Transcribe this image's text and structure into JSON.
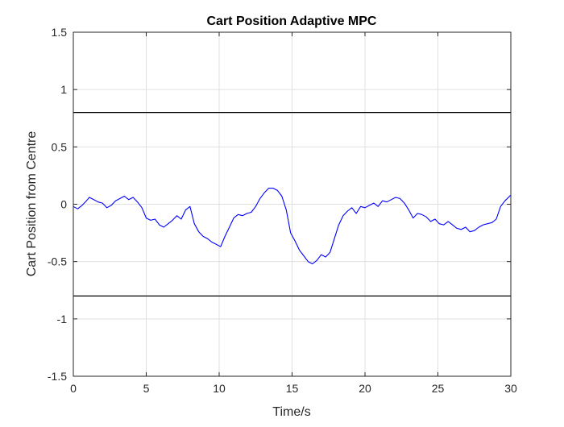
{
  "chart_data": {
    "type": "line",
    "title": "Cart Position Adaptive MPC",
    "xlabel": "Time/s",
    "ylabel": "Cart Position from Centre",
    "xlim": [
      0,
      30
    ],
    "ylim": [
      -1.5,
      1.5
    ],
    "xticks": [
      0,
      5,
      10,
      15,
      20,
      25,
      30
    ],
    "yticks": [
      -1.5,
      -1,
      -0.5,
      0,
      0.5,
      1,
      1.5
    ],
    "xtick_labels": [
      "0",
      "5",
      "10",
      "15",
      "20",
      "25",
      "30"
    ],
    "ytick_labels": [
      "-1.5",
      "-1",
      "-0.5",
      "0",
      "0.5",
      "1",
      "1.5"
    ],
    "grid": true,
    "constraint_lines": [
      0.8,
      -0.8
    ],
    "constraint_color": "#000000",
    "series_color": "#0000ff",
    "series": [
      {
        "x": [
          0,
          0.3,
          0.6,
          0.9,
          1.1,
          1.4,
          1.7,
          2.0,
          2.3,
          2.6,
          2.9,
          3.2,
          3.5,
          3.8,
          4.1,
          4.4,
          4.7,
          5.0,
          5.3,
          5.6,
          5.9,
          6.2,
          6.5,
          6.8,
          7.1,
          7.4,
          7.7,
          8.0,
          8.3,
          8.6,
          8.9,
          9.2,
          9.5,
          9.8,
          10.1,
          10.4,
          10.7,
          11.0,
          11.3,
          11.6,
          11.9,
          12.2,
          12.5,
          12.8,
          13.1,
          13.4,
          13.7,
          14.0,
          14.3,
          14.6,
          14.9,
          15.2,
          15.5,
          15.8,
          16.1,
          16.4,
          16.7,
          17.0,
          17.3,
          17.6,
          17.9,
          18.2,
          18.5,
          18.8,
          19.1,
          19.4,
          19.7,
          20.0,
          20.3,
          20.6,
          20.9,
          21.2,
          21.5,
          21.8,
          22.1,
          22.4,
          22.7,
          23.0,
          23.3,
          23.6,
          23.9,
          24.2,
          24.5,
          24.8,
          25.1,
          25.4,
          25.7,
          26.0,
          26.3,
          26.6,
          26.9,
          27.2,
          27.5,
          27.8,
          28.1,
          28.4,
          28.7,
          29.0,
          29.3,
          29.6,
          30.0
        ],
        "values": [
          -0.02,
          -0.04,
          -0.01,
          0.03,
          0.06,
          0.04,
          0.02,
          0.01,
          -0.03,
          -0.01,
          0.03,
          0.05,
          0.07,
          0.04,
          0.06,
          0.02,
          -0.03,
          -0.12,
          -0.14,
          -0.13,
          -0.18,
          -0.2,
          -0.17,
          -0.14,
          -0.1,
          -0.13,
          -0.05,
          -0.02,
          -0.17,
          -0.24,
          -0.28,
          -0.3,
          -0.33,
          -0.35,
          -0.37,
          -0.28,
          -0.2,
          -0.12,
          -0.09,
          -0.1,
          -0.08,
          -0.07,
          -0.02,
          0.05,
          0.1,
          0.14,
          0.14,
          0.12,
          0.07,
          -0.05,
          -0.25,
          -0.32,
          -0.4,
          -0.45,
          -0.5,
          -0.52,
          -0.49,
          -0.44,
          -0.46,
          -0.42,
          -0.3,
          -0.18,
          -0.1,
          -0.06,
          -0.03,
          -0.08,
          -0.02,
          -0.03,
          -0.01,
          0.01,
          -0.02,
          0.03,
          0.02,
          0.04,
          0.06,
          0.05,
          0.01,
          -0.05,
          -0.12,
          -0.08,
          -0.09,
          -0.11,
          -0.15,
          -0.13,
          -0.17,
          -0.18,
          -0.15,
          -0.18,
          -0.21,
          -0.22,
          -0.2,
          -0.24,
          -0.23,
          -0.2,
          -0.18,
          -0.17,
          -0.16,
          -0.13,
          -0.02,
          0.03,
          0.08
        ]
      }
    ]
  }
}
